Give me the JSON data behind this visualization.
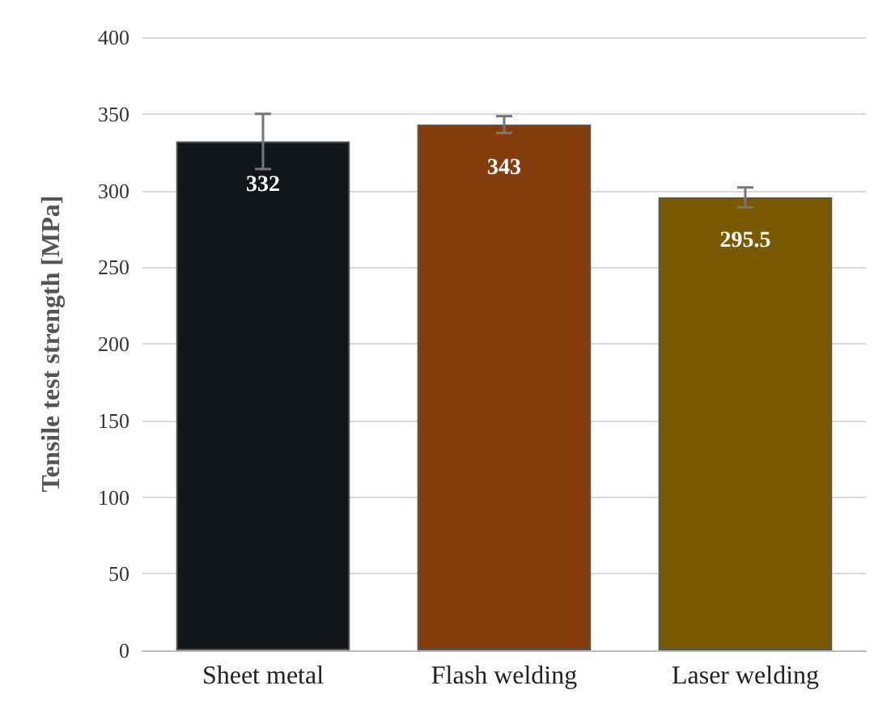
{
  "chart_data": {
    "type": "bar",
    "ylabel": "Tensile test strength [MPa]",
    "categories": [
      "Sheet metal",
      "Flash welding",
      "Laser welding"
    ],
    "values": [
      332,
      343,
      295.5
    ],
    "colors": [
      "#12151a",
      "#853c0c",
      "#7a5a00"
    ],
    "errors": [
      18,
      5.5,
      6.5
    ],
    "data_labels": true,
    "ylim": [
      0,
      400
    ],
    "yticks": [
      0,
      50,
      100,
      150,
      200,
      250,
      300,
      350,
      400
    ],
    "grid": "y"
  }
}
